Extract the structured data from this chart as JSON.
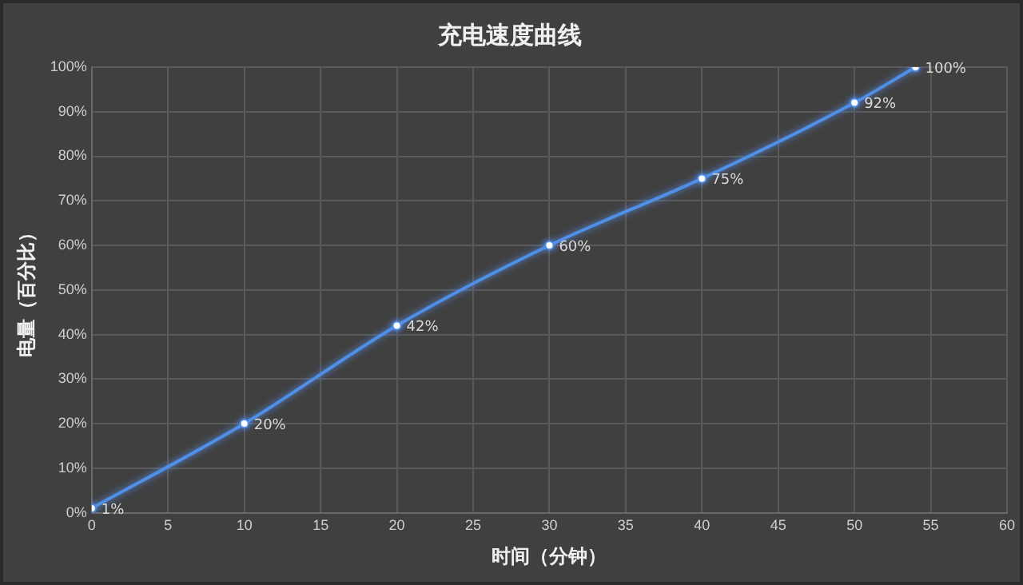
{
  "chart_data": {
    "type": "line",
    "title": "充电速度曲线",
    "xlabel": "时间（分钟）",
    "ylabel": "电量（百分比）",
    "x": [
      0,
      10,
      20,
      30,
      40,
      50,
      54
    ],
    "series": [
      {
        "color": "#4f8fe6",
        "values": [
          1,
          20,
          42,
          60,
          75,
          92,
          100
        ],
        "value_labels": [
          "1%",
          "20%",
          "42%",
          "60%",
          "75%",
          "92%",
          "100%"
        ]
      }
    ],
    "xlim": [
      0,
      60
    ],
    "xticks": [
      0,
      5,
      10,
      15,
      20,
      25,
      30,
      35,
      40,
      45,
      50,
      55,
      60
    ],
    "ylim": [
      0,
      100
    ],
    "yticks": [
      {
        "value": 0,
        "label": "0%"
      },
      {
        "value": 10,
        "label": "10%"
      },
      {
        "value": 20,
        "label": "20%"
      },
      {
        "value": 30,
        "label": "30%"
      },
      {
        "value": 40,
        "label": "40%"
      },
      {
        "value": 50,
        "label": "50%"
      },
      {
        "value": 60,
        "label": "60%"
      },
      {
        "value": 70,
        "label": "70%"
      },
      {
        "value": 80,
        "label": "80%"
      },
      {
        "value": 90,
        "label": "90%"
      },
      {
        "value": 100,
        "label": "100%"
      }
    ],
    "grid": true,
    "legend": false,
    "marker": "circle",
    "line_style": "solid"
  }
}
